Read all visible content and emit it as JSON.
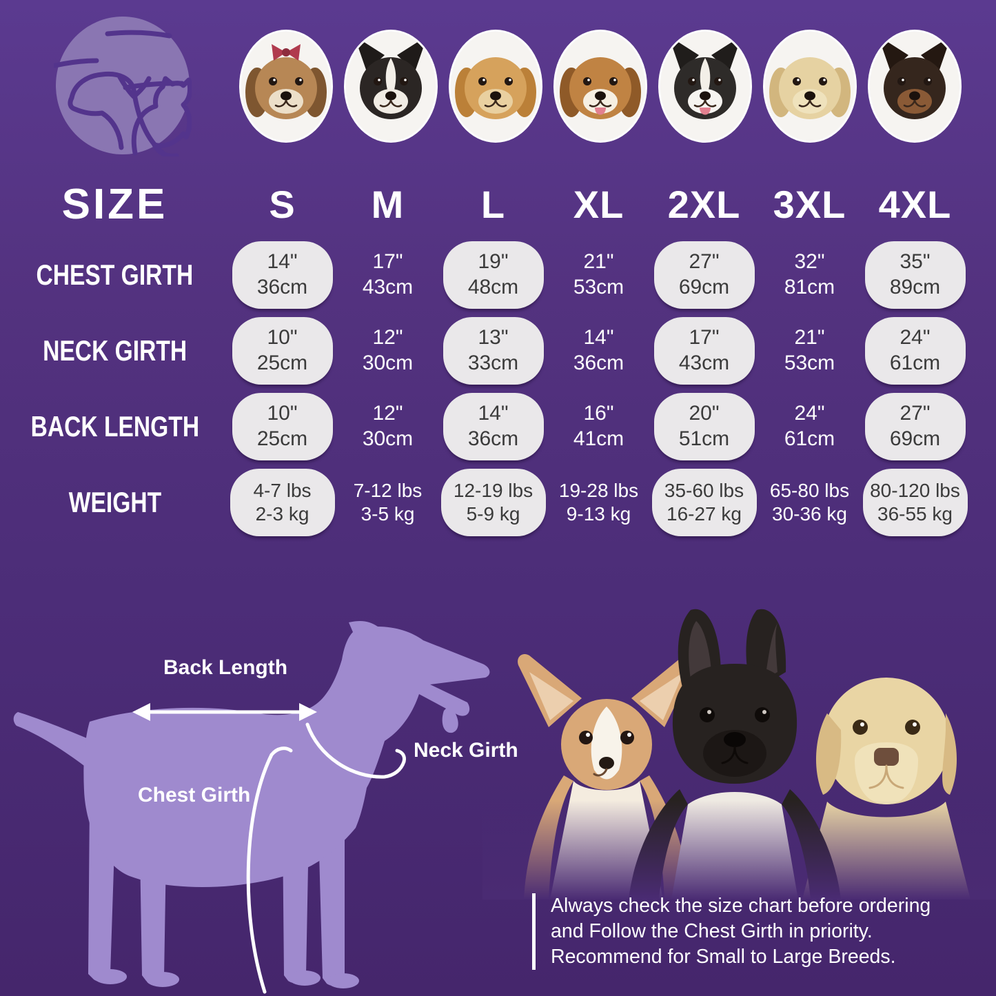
{
  "colors": {
    "background_top": "#5b3a90",
    "background_bottom": "#45266c",
    "pill_bg": "#eae8ea",
    "pill_text": "#3b3b3b",
    "white": "#ffffff",
    "silhouette": "#9f8ace",
    "logo_disc": "#8a76b2",
    "logo_line": "#53348c"
  },
  "breeds": [
    {
      "name": "Shih Tzu",
      "face": "#b78755",
      "ear": "#7e5630",
      "muzzle": "#ecdfc9",
      "ear_type": "floppy",
      "extras": [
        "bow"
      ]
    },
    {
      "name": "Boston Terrier",
      "face": "#2b2624",
      "ear": "#1f1b19",
      "muzzle": "#f1ece4",
      "ear_type": "pointy",
      "extras": [
        "blaze"
      ]
    },
    {
      "name": "Cocker Spaniel",
      "face": "#d6a25c",
      "ear": "#bb8038",
      "muzzle": "#e9d0a0",
      "ear_type": "floppy",
      "extras": []
    },
    {
      "name": "Beagle",
      "face": "#c08343",
      "ear": "#8f5a28",
      "muzzle": "#f6efe2",
      "ear_type": "floppy",
      "extras": [
        "tongue"
      ]
    },
    {
      "name": "Border Collie",
      "face": "#2e2b29",
      "ear": "#201d1b",
      "muzzle": "#f6f4f0",
      "ear_type": "pointy",
      "extras": [
        "blaze",
        "tongue"
      ]
    },
    {
      "name": "Labrador Retriever",
      "face": "#e6d2a2",
      "ear": "#d2b67e",
      "muzzle": "#efe2bc",
      "ear_type": "floppy",
      "extras": []
    },
    {
      "name": "Doberman",
      "face": "#35261d",
      "ear": "#241811",
      "muzzle": "#8a5a36",
      "ear_type": "pointy",
      "extras": []
    }
  ],
  "table": {
    "size_label": "SIZE",
    "sizes": [
      "S",
      "M",
      "L",
      "XL",
      "2XL",
      "3XL",
      "4XL"
    ],
    "rows": [
      {
        "label": "CHEST GIRTH",
        "values": [
          [
            "14\"",
            "36cm"
          ],
          [
            "17\"",
            "43cm"
          ],
          [
            "19\"",
            "48cm"
          ],
          [
            "21\"",
            "53cm"
          ],
          [
            "27\"",
            "69cm"
          ],
          [
            "32\"",
            "81cm"
          ],
          [
            "35\"",
            "89cm"
          ]
        ]
      },
      {
        "label": "NECK GIRTH",
        "values": [
          [
            "10\"",
            "25cm"
          ],
          [
            "12\"",
            "30cm"
          ],
          [
            "13\"",
            "33cm"
          ],
          [
            "14\"",
            "36cm"
          ],
          [
            "17\"",
            "43cm"
          ],
          [
            "21\"",
            "53cm"
          ],
          [
            "24\"",
            "61cm"
          ]
        ]
      },
      {
        "label": "BACK LENGTH",
        "values": [
          [
            "10\"",
            "25cm"
          ],
          [
            "12\"",
            "30cm"
          ],
          [
            "14\"",
            "36cm"
          ],
          [
            "16\"",
            "41cm"
          ],
          [
            "20\"",
            "51cm"
          ],
          [
            "24\"",
            "61cm"
          ],
          [
            "27\"",
            "69cm"
          ]
        ]
      },
      {
        "label": "WEIGHT",
        "values": [
          [
            "4-7 lbs",
            "2-3 kg"
          ],
          [
            "7-12 lbs",
            "3-5 kg"
          ],
          [
            "12-19 lbs",
            "5-9 kg"
          ],
          [
            "19-28 lbs",
            "9-13 kg"
          ],
          [
            "35-60 lbs",
            "16-27 kg"
          ],
          [
            "65-80 lbs",
            "30-36 kg"
          ],
          [
            "80-120 lbs",
            "36-55 kg"
          ]
        ]
      }
    ]
  },
  "diagram": {
    "back_length_label": "Back Length",
    "neck_girth_label": "Neck Girth",
    "chest_girth_label": "Chest Girth"
  },
  "note": {
    "lines": [
      "Always check the size chart before ordering",
      "and Follow the Chest Girth in priority.",
      "Recommend for Small to Large Breeds."
    ]
  }
}
